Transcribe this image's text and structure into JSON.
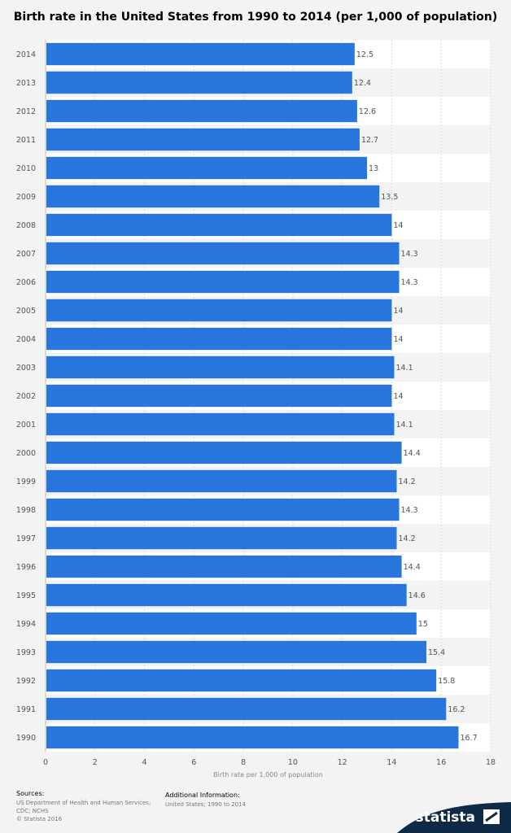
{
  "chart_data": {
    "type": "bar",
    "orientation": "horizontal",
    "title": "Birth rate in the United States from 1990 to 2014 (per 1,000 of population)",
    "xlabel": "Birth rate per 1,000 of population",
    "ylabel": "",
    "xlim": [
      0,
      18
    ],
    "x_ticks": [
      0,
      2,
      4,
      6,
      8,
      10,
      12,
      14,
      16,
      18
    ],
    "categories": [
      "2014",
      "2013",
      "2012",
      "2011",
      "2010",
      "2009",
      "2008",
      "2007",
      "2006",
      "2005",
      "2004",
      "2003",
      "2002",
      "2001",
      "2000",
      "1999",
      "1998",
      "1997",
      "1996",
      "1995",
      "1994",
      "1993",
      "1992",
      "1991",
      "1990"
    ],
    "values": [
      12.5,
      12.4,
      12.6,
      12.7,
      13,
      13.5,
      14,
      14.3,
      14.3,
      14,
      14,
      14.1,
      14,
      14.1,
      14.4,
      14.2,
      14.3,
      14.2,
      14.4,
      14.6,
      15,
      15.4,
      15.8,
      16.2,
      16.7
    ],
    "value_labels": [
      "12.5",
      "12.4",
      "12.6",
      "12.7",
      "13",
      "13.5",
      "14",
      "14.3",
      "14.3",
      "14",
      "14",
      "14.1",
      "14",
      "14.1",
      "14.4",
      "14.2",
      "14.3",
      "14.2",
      "14.4",
      "14.6",
      "15",
      "15.4",
      "15.8",
      "16.2",
      "16.7"
    ],
    "grid": true,
    "bar_color": "#2876dd"
  },
  "footer": {
    "sources_label": "Sources:",
    "sources_text": "US Department of Health and Human Services; CDC; NCHS",
    "copyright": "© Statista 2016",
    "additional_label": "Additional Information:",
    "additional_text": "United States; 1990 to 2014"
  },
  "brand": {
    "name": "statista",
    "bg_color": "#0e2a47"
  }
}
